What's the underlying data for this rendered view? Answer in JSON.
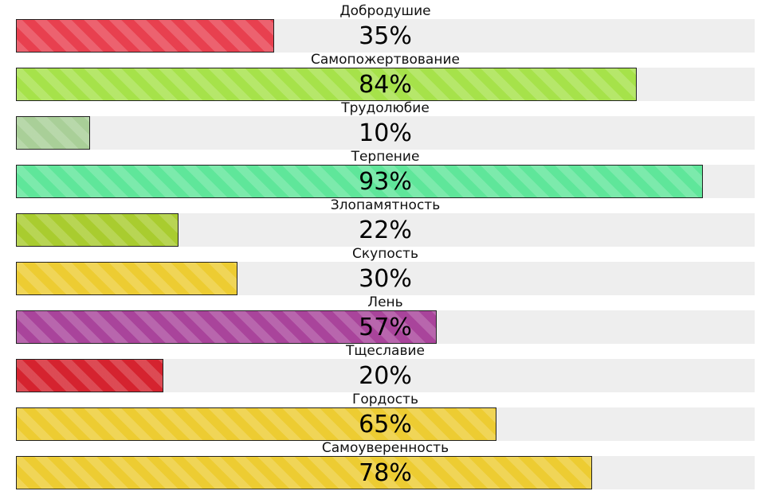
{
  "chart_data": {
    "type": "bar",
    "orientation": "horizontal",
    "xlim": [
      0,
      100
    ],
    "unit": "%",
    "grid": false,
    "bars": [
      {
        "label": "Добродушие",
        "value": 35,
        "value_label": "35%",
        "color": "#e8404f"
      },
      {
        "label": "Самопожертвование",
        "value": 84,
        "value_label": "84%",
        "color": "#a6e24a"
      },
      {
        "label": "Трудолюбие",
        "value": 10,
        "value_label": "10%",
        "color": "#a9cf98"
      },
      {
        "label": "Терпение",
        "value": 93,
        "value_label": "93%",
        "color": "#5fe69a"
      },
      {
        "label": "Злопамятность",
        "value": 22,
        "value_label": "22%",
        "color": "#a9cc2f"
      },
      {
        "label": "Скупость",
        "value": 30,
        "value_label": "30%",
        "color": "#edcc32"
      },
      {
        "label": "Лень",
        "value": 57,
        "value_label": "57%",
        "color": "#a9449b"
      },
      {
        "label": "Тщеславие",
        "value": 20,
        "value_label": "20%",
        "color": "#d5232f"
      },
      {
        "label": "Гордость",
        "value": 65,
        "value_label": "65%",
        "color": "#edcc32"
      },
      {
        "label": "Самоуверенность",
        "value": 78,
        "value_label": "78%",
        "color": "#edcc32"
      }
    ]
  }
}
